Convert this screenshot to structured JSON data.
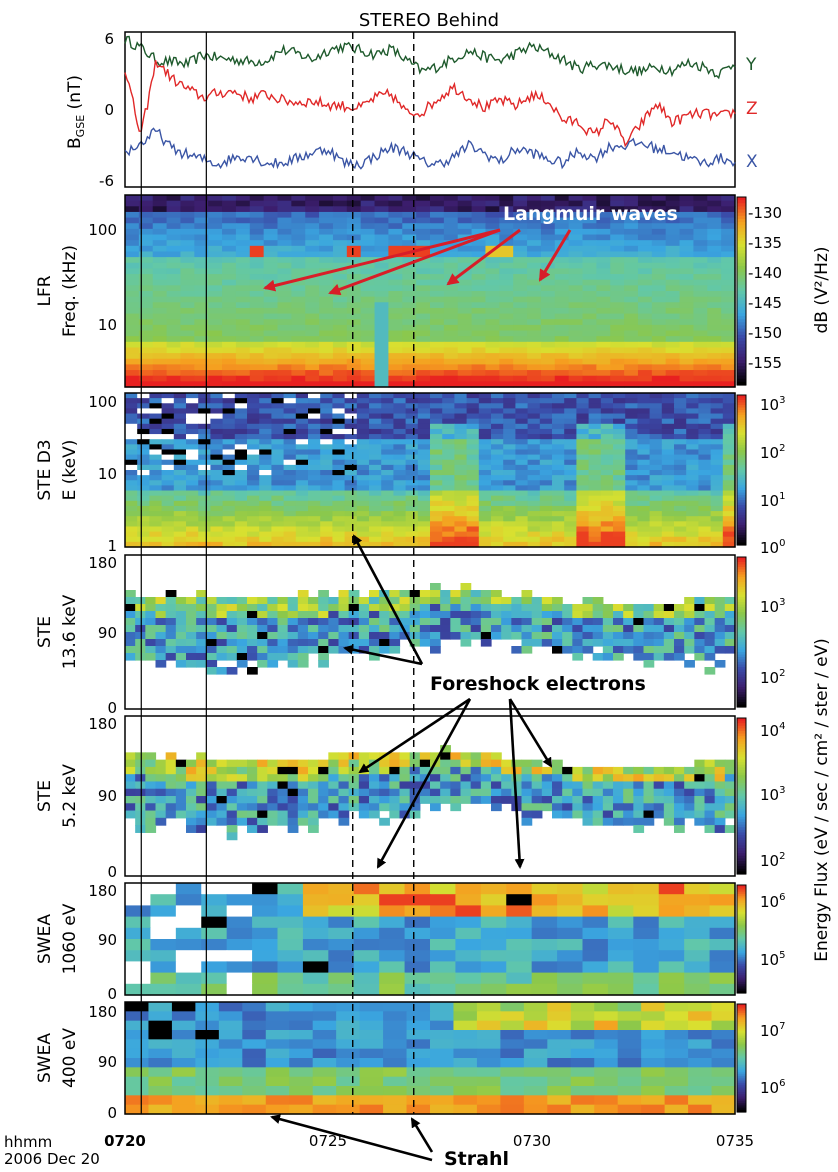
{
  "chart_data": {
    "type": "multi-panel time series / spectrogram",
    "title": "STEREO Behind",
    "time_axis": {
      "ticks": [
        "0720",
        "0725",
        "0730",
        "0735"
      ],
      "label_line1": "hhmm",
      "label_line2": "2006 Dec 20",
      "range": [
        "07:20",
        "07:35"
      ]
    },
    "vertical_marks": {
      "solid": [
        "07:20.4",
        "07:22.0"
      ],
      "dashed": [
        "07:25.6",
        "07:27.1"
      ]
    },
    "panels": [
      {
        "id": "bgse",
        "type": "line",
        "ylabel_main": "B",
        "ylabel_sub": "GSE",
        "ylabel_unit": " (nT)",
        "yticks": [
          "6",
          "0",
          "-6"
        ],
        "ylim": [
          -6.5,
          6.5
        ],
        "series": [
          {
            "name": "Y",
            "color": "#1e5a2c",
            "values": [
              5.9,
              5.2,
              4.1,
              4.0,
              3.8,
              4.6,
              4.3,
              4.2,
              4.0,
              4.1,
              5.0,
              4.7,
              4.2,
              5.0,
              5.3,
              5.0,
              4.6,
              5.1,
              4.1,
              3.2,
              3.6,
              4.3,
              4.9,
              4.4,
              4.1,
              4.7,
              5.3,
              4.8,
              4.2,
              3.4,
              3.8,
              3.7,
              3.3,
              3.2,
              3.6,
              3.3,
              3.9,
              3.6,
              3.0,
              3.9
            ]
          },
          {
            "name": "Z",
            "color": "#e02828",
            "values": [
              3.5,
              -2.3,
              4.1,
              2.6,
              1.7,
              1.0,
              1.4,
              1.5,
              0.9,
              1.3,
              0.8,
              0.6,
              0.7,
              0.4,
              0.3,
              0.1,
              1.0,
              1.3,
              -0.3,
              -0.2,
              0.9,
              1.9,
              1.0,
              0.1,
              0.8,
              0.3,
              1.2,
              0.8,
              -0.9,
              -1.1,
              -2.2,
              -0.7,
              -2.9,
              -1.2,
              0.5,
              -1.1,
              -0.5,
              -0.3,
              -0.6,
              -0.2
            ]
          },
          {
            "name": "X",
            "color": "#3a55a5",
            "values": [
              -3.6,
              -2.9,
              -1.8,
              -3.3,
              -3.8,
              -4.2,
              -4.6,
              -4.0,
              -3.9,
              -4.5,
              -4.5,
              -4.1,
              -3.6,
              -3.3,
              -4.5,
              -4.6,
              -3.9,
              -3.2,
              -3.5,
              -4.4,
              -4.6,
              -4.0,
              -3.0,
              -3.7,
              -4.4,
              -3.3,
              -3.6,
              -4.2,
              -4.5,
              -3.5,
              -4.1,
              -3.1,
              -3.0,
              -2.8,
              -3.3,
              -3.5,
              -4.1,
              -4.5,
              -4.1,
              -4.3
            ]
          }
        ]
      },
      {
        "id": "lfr",
        "type": "heatmap",
        "ylabel1": "LFR",
        "ylabel2": "Freq. (kHz)",
        "yticks": [
          "100",
          "10"
        ],
        "yscale": "log",
        "colorbar_label": "dB (V²/Hz)",
        "colorbar_ticks": [
          "-130",
          "-135",
          "-140",
          "-145",
          "-150",
          "-155"
        ],
        "colorbar_range": [
          -157,
          -127
        ],
        "annotation": "Langmuir waves"
      },
      {
        "id": "sted3",
        "type": "heatmap",
        "ylabel1": "STE D3",
        "ylabel2": "E (keV)",
        "yticks": [
          "100",
          "10",
          "1"
        ],
        "yscale": "log",
        "colorbar_ticks_mantissa": "10",
        "colorbar_ticks_exp": [
          "3",
          "2",
          "1",
          "0"
        ]
      },
      {
        "id": "ste136",
        "type": "heatmap",
        "ylabel1": "STE",
        "ylabel2": "13.6 keV",
        "yticks": [
          "180",
          "90",
          "0"
        ],
        "colorbar_ticks_mantissa": "10",
        "colorbar_ticks_exp": [
          "3",
          "2"
        ]
      },
      {
        "id": "ste52",
        "type": "heatmap",
        "ylabel1": "STE",
        "ylabel2": "5.2 keV",
        "yticks": [
          "180",
          "90",
          "0"
        ],
        "colorbar_ticks_mantissa": "10",
        "colorbar_ticks_exp": [
          "4",
          "3",
          "2"
        ]
      },
      {
        "id": "swea1060",
        "type": "heatmap",
        "ylabel1": "SWEA",
        "ylabel2": "1060 eV",
        "yticks": [
          "180",
          "90",
          "0"
        ],
        "colorbar_ticks_mantissa": "10",
        "colorbar_ticks_exp": [
          "6",
          "5"
        ]
      },
      {
        "id": "swea400",
        "type": "heatmap",
        "ylabel1": "SWEA",
        "ylabel2": "400 eV",
        "yticks": [
          "180",
          "90",
          "0"
        ],
        "colorbar_ticks_mantissa": "10",
        "colorbar_ticks_exp": [
          "7",
          "6"
        ]
      }
    ],
    "shared_colorbar_label": "Energy Flux (eV / sec / cm² / ster / eV)",
    "annotations": {
      "foreshock": "Foreshock electrons",
      "strahl": "Strahl"
    },
    "colors": {
      "colormap": [
        "#000000",
        "#3c1e6e",
        "#3a4aa8",
        "#3aa6e0",
        "#62c8a8",
        "#8cc84a",
        "#d8e030",
        "#f5a020",
        "#e82020"
      ],
      "annotation_arrow": "#d81e28",
      "annotation_text": "#ffffff"
    }
  }
}
